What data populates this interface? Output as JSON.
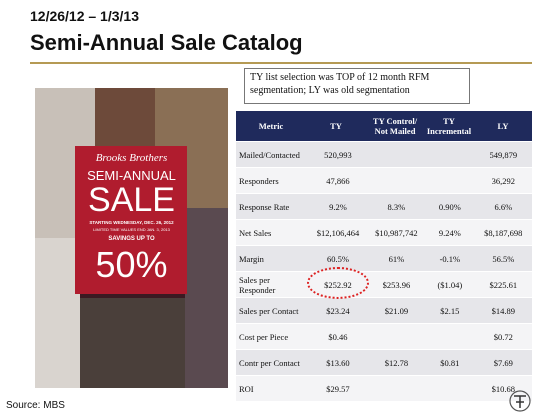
{
  "header": {
    "date_range": "12/26/12 – 1/3/13",
    "title": "Semi-Annual Sale Catalog"
  },
  "catalog": {
    "brand": "Brooks Brothers",
    "headline": "SEMI-ANNUAL",
    "sale": "SALE",
    "start": "STARTING WEDNESDAY, DEC. 26, 2012",
    "end": "LIMITED TIME VALUES END JAN. 3, 2013",
    "savings": "SAVINGS UP TO",
    "discount": "50%"
  },
  "note": "TY list selection was TOP of 12 month RFM segmentation; LY was old segmentation",
  "table": {
    "columns": [
      "Metric",
      "TY",
      "TY Control/ Not Mailed",
      "TY Incremental",
      "LY"
    ],
    "rows": [
      [
        "Mailed/Contacted",
        "520,993",
        null,
        null,
        "549,879"
      ],
      [
        "Responders",
        "47,866",
        null,
        null,
        "36,292"
      ],
      [
        "Response Rate",
        "9.2%",
        "8.3%",
        "0.90%",
        "6.6%"
      ],
      [
        "Net Sales",
        "$12,106,464",
        "$10,987,742",
        "9.24%",
        "$8,187,698"
      ],
      [
        "Margin",
        "60.5%",
        "61%",
        "-0.1%",
        "56.5%"
      ],
      [
        "Sales per Responder",
        "$252.92",
        "$253.96",
        "($1.04)",
        "$225.61"
      ],
      [
        "Sales per Contact",
        "$23.24",
        "$21.09",
        "$2.15",
        "$14.89"
      ],
      [
        "Cost per Piece",
        "$0.46",
        null,
        null,
        "$0.72"
      ],
      [
        "Contr per Contact",
        "$13.60",
        "$12.78",
        "$0.81",
        "$7.69"
      ],
      [
        "ROI",
        "$29.57",
        null,
        null,
        "$10.68"
      ]
    ]
  },
  "footer": {
    "source": "Source: MBS"
  }
}
